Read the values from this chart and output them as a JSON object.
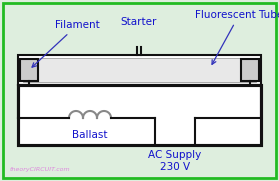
{
  "bg_color": "#deeede",
  "border_color": "#22bb22",
  "line_color": "#111111",
  "label_color": "#1111cc",
  "filament_label": "Filament",
  "starter_label": "Starter",
  "tube_label": "Fluorescent Tube",
  "ballast_label": "Ballast",
  "ac_supply_label": "AC Supply\n230 V",
  "watermark": "theoryCIRCUIT.com"
}
